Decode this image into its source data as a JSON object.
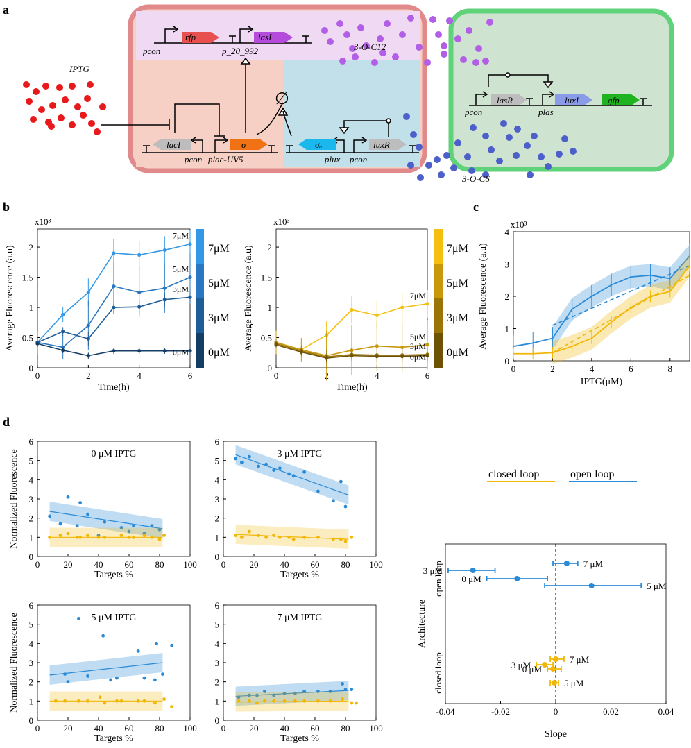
{
  "panel_letters": {
    "a": "a",
    "b": "b",
    "c": "c",
    "d": "d"
  },
  "schematic": {
    "iptg": "IPTG",
    "signal_c12": "3-O-C12",
    "signal_c6": "3-O-C6",
    "genes": {
      "rfp": "rfp",
      "lasI": "lasI",
      "lacI": "lacI",
      "sigma": "σ",
      "anti_sigma": "σₐ",
      "luxR": "luxR",
      "lasR": "lasR",
      "luxI": "luxI",
      "gfp": "gfp"
    },
    "promoters": {
      "pcon": "pcon",
      "p_20_992": "p_20_992",
      "plac": "plac-UV5",
      "plux": "plux",
      "plas": "plas"
    },
    "null_symbol": "∅"
  },
  "colors": {
    "blue": "#2a8ad6",
    "yellow": "#f2b705",
    "red": "#e8191a",
    "purple": "#b35ee6",
    "navy": "#4d5fc9"
  },
  "chart_data": [
    {
      "id": "b-left",
      "type": "line",
      "exponent": "x10³",
      "xlabel": "Time(h)",
      "ylabel": "Average Fluorescence (a.u)",
      "xlim": [
        0,
        6
      ],
      "ylim": [
        0,
        2.3
      ],
      "xticks": [
        "0",
        "2",
        "4",
        "6"
      ],
      "yticks": [
        "0",
        "0.5",
        "1",
        "1.5",
        "2"
      ],
      "x": [
        0,
        1,
        2,
        3,
        4,
        5,
        6
      ],
      "series": [
        {
          "name": "7μM",
          "values": [
            0.42,
            0.88,
            1.25,
            1.9,
            1.87,
            1.95,
            2.05
          ],
          "color": "#3399e6"
        },
        {
          "name": "5μM",
          "values": [
            0.42,
            0.34,
            0.7,
            1.35,
            1.25,
            1.32,
            1.5
          ],
          "color": "#2877c0"
        },
        {
          "name": "3μM",
          "values": [
            0.42,
            0.6,
            0.48,
            1.0,
            1.01,
            1.13,
            1.17
          ],
          "color": "#1e5d98"
        },
        {
          "name": "0μM",
          "values": [
            0.4,
            0.29,
            0.2,
            0.28,
            0.28,
            0.28,
            0.28
          ],
          "color": "#153e66"
        }
      ],
      "colorbar": [
        "7μM",
        "5μM",
        "3μM",
        "0μM"
      ]
    },
    {
      "id": "b-right",
      "type": "line",
      "exponent": "x10³",
      "xlabel": "Time(h)",
      "ylabel": "Average Fluorescence (a.u)",
      "xlim": [
        0,
        6
      ],
      "ylim": [
        0,
        2.3
      ],
      "xticks": [
        "0",
        "2",
        "4",
        "6"
      ],
      "yticks": [
        "0",
        "0.5",
        "1",
        "1.5",
        "2"
      ],
      "x": [
        0,
        1,
        2,
        3,
        4,
        5,
        6
      ],
      "series": [
        {
          "name": "7μM",
          "values": [
            0.42,
            0.3,
            0.54,
            0.96,
            0.87,
            1.0,
            1.06
          ],
          "color": "#f5bf0f"
        },
        {
          "name": "5μM",
          "values": [
            0.42,
            0.3,
            0.2,
            0.29,
            0.36,
            0.34,
            0.38
          ],
          "color": "#c8980a"
        },
        {
          "name": "3μM",
          "values": [
            0.4,
            0.28,
            0.18,
            0.22,
            0.21,
            0.21,
            0.22
          ],
          "color": "#9a7406"
        },
        {
          "name": "0μM",
          "values": [
            0.38,
            0.26,
            0.16,
            0.2,
            0.19,
            0.19,
            0.2
          ],
          "color": "#6e5203"
        }
      ],
      "colorbar": [
        "7μM",
        "5μM",
        "3μM",
        "0μM"
      ]
    },
    {
      "id": "c",
      "type": "line",
      "exponent": "x10³",
      "xlabel": "IPTG(μM)",
      "ylabel": "Average Fluorescence (a.u)",
      "xlim": [
        0,
        9
      ],
      "ylim": [
        0,
        4
      ],
      "xticks": [
        "0",
        "2",
        "4",
        "6",
        "8"
      ],
      "yticks": [
        "0",
        "1",
        "2",
        "3",
        "4"
      ],
      "series": [
        {
          "name": "open loop",
          "x": [
            0,
            1,
            2,
            3,
            4,
            5,
            6,
            7,
            8,
            9
          ],
          "values": [
            0.45,
            0.55,
            0.7,
            1.6,
            2.0,
            2.35,
            2.6,
            2.65,
            2.55,
            3.25
          ],
          "color": "#2a8ad6"
        },
        {
          "name": "closed loop",
          "x": [
            0,
            1,
            2,
            3,
            4,
            5,
            6,
            7,
            8,
            9
          ],
          "values": [
            0.22,
            0.22,
            0.25,
            0.45,
            0.7,
            1.2,
            1.65,
            2.0,
            2.15,
            2.95
          ],
          "color": "#f2b705"
        }
      ]
    },
    {
      "id": "d1",
      "type": "scatter",
      "title": "0 μM IPTG",
      "xlabel": "Targets %",
      "ylabel": "Normalized Fluorescence",
      "xlim": [
        0,
        100
      ],
      "ylim": [
        0,
        6
      ],
      "xticks": [
        "0",
        "20",
        "40",
        "60",
        "80",
        "100"
      ],
      "yticks": [
        "0",
        "1",
        "2",
        "3",
        "4",
        "5",
        "6"
      ],
      "open": {
        "x": [
          8,
          15,
          20,
          26,
          28,
          33,
          40,
          44,
          55,
          60,
          63,
          70,
          75,
          80
        ],
        "y": [
          2.1,
          1.7,
          3.1,
          1.6,
          2.8,
          2.2,
          1.1,
          1.8,
          1.5,
          1.3,
          1.6,
          1.2,
          1.6,
          1.4
        ],
        "fit": [
          2.35,
          1.45
        ]
      },
      "closed": {
        "x": [
          8,
          15,
          20,
          26,
          28,
          33,
          40,
          44,
          55,
          60,
          63,
          70,
          75,
          80,
          83
        ],
        "y": [
          1.0,
          1.1,
          1.2,
          1.0,
          1.0,
          1.1,
          1.0,
          1.0,
          1.1,
          1.0,
          1.0,
          1.1,
          1.0,
          0.9,
          1.1
        ],
        "fit": [
          1.0,
          1.0
        ]
      }
    },
    {
      "id": "d2",
      "type": "scatter",
      "title": "3 μM IPTG",
      "xlabel": "Targets %",
      "ylabel": "Normalized Fluorescence",
      "xlim": [
        0,
        100
      ],
      "ylim": [
        0,
        6
      ],
      "xticks": [
        "0",
        "20",
        "40",
        "60",
        "80",
        "100"
      ],
      "yticks": [
        "0",
        "1",
        "2",
        "3",
        "4",
        "5",
        "6"
      ],
      "open": {
        "x": [
          8,
          12,
          17,
          23,
          28,
          33,
          37,
          43,
          46,
          53,
          62,
          72,
          77,
          80
        ],
        "y": [
          5.1,
          4.9,
          5.2,
          4.7,
          4.8,
          4.5,
          4.6,
          4.3,
          4.2,
          4.4,
          3.4,
          2.9,
          3.9,
          2.6
        ],
        "fit": [
          5.3,
          3.2
        ]
      },
      "closed": {
        "x": [
          8,
          12,
          17,
          23,
          28,
          33,
          37,
          43,
          46,
          53,
          62,
          72,
          77,
          80,
          84
        ],
        "y": [
          1.1,
          1.0,
          1.3,
          1.1,
          1.0,
          1.1,
          1.0,
          1.0,
          0.9,
          1.0,
          1.0,
          0.9,
          0.9,
          0.8,
          1.0
        ],
        "fit": [
          1.15,
          0.9
        ]
      }
    },
    {
      "id": "d3",
      "type": "scatter",
      "title": "5 μM IPTG",
      "xlabel": "Targets %",
      "ylabel": "Normalized Fluorescence",
      "xlim": [
        0,
        100
      ],
      "ylim": [
        0,
        6
      ],
      "xticks": [
        "0",
        "20",
        "40",
        "60",
        "80",
        "100"
      ],
      "yticks": [
        "0",
        "1",
        "2",
        "3",
        "4",
        "5",
        "6"
      ],
      "open": {
        "x": [
          18,
          20,
          27,
          33,
          43,
          48,
          52,
          66,
          70,
          77,
          78,
          82,
          88
        ],
        "y": [
          2.4,
          2.0,
          5.3,
          2.3,
          4.4,
          2.1,
          2.2,
          3.6,
          2.2,
          2.1,
          4.0,
          2.4,
          3.9
        ],
        "fit": [
          2.35,
          3.0
        ]
      },
      "closed": {
        "x": [
          12,
          18,
          27,
          33,
          41,
          44,
          52,
          55,
          66,
          70,
          77,
          83,
          88
        ],
        "y": [
          1.0,
          1.0,
          1.0,
          1.0,
          1.2,
          0.9,
          1.0,
          1.0,
          1.0,
          1.0,
          0.9,
          1.1,
          0.7
        ],
        "fit": [
          1.0,
          1.0
        ]
      }
    },
    {
      "id": "d4",
      "type": "scatter",
      "title": "7 μM IPTG",
      "xlabel": "Targets %",
      "ylabel": "Normalized Fluorescence",
      "xlim": [
        0,
        100
      ],
      "ylim": [
        0,
        6
      ],
      "xticks": [
        "0",
        "20",
        "40",
        "60",
        "80",
        "100"
      ],
      "yticks": [
        "0",
        "1",
        "2",
        "3",
        "4",
        "5",
        "6"
      ],
      "open": {
        "x": [
          10,
          17,
          22,
          27,
          33,
          40,
          47,
          53,
          62,
          70,
          78,
          80,
          84
        ],
        "y": [
          1.2,
          1.3,
          1.3,
          1.5,
          1.3,
          1.4,
          1.4,
          1.5,
          1.5,
          1.5,
          1.9,
          1.6,
          1.6
        ],
        "fit": [
          1.25,
          1.55
        ]
      },
      "closed": {
        "x": [
          10,
          17,
          22,
          27,
          33,
          40,
          47,
          53,
          62,
          70,
          78,
          84,
          87
        ],
        "y": [
          1.0,
          1.0,
          0.9,
          1.0,
          1.0,
          1.0,
          1.0,
          1.0,
          1.0,
          1.0,
          1.1,
          0.9,
          0.9
        ],
        "fit": [
          0.95,
          1.0
        ]
      }
    },
    {
      "id": "d-slope",
      "type": "scatter",
      "xlabel": "Slope",
      "ylabel": "Architecture",
      "xlim": [
        -0.04,
        0.04
      ],
      "xticks": [
        "-0.04",
        "-0.02",
        "0",
        "0.02",
        "0.04"
      ],
      "categories": [
        "open loop",
        "closed loop"
      ],
      "legend": [
        "closed loop",
        "open loop"
      ],
      "open": [
        {
          "label": "7 μM",
          "value": 0.004,
          "lo": -0.001,
          "hi": 0.008
        },
        {
          "label": "3 μM",
          "value": -0.03,
          "lo": -0.039,
          "hi": -0.022
        },
        {
          "label": "0 μM",
          "value": -0.014,
          "lo": -0.025,
          "hi": -0.003
        },
        {
          "label": "5 μM",
          "value": 0.013,
          "lo": -0.004,
          "hi": 0.031
        }
      ],
      "closed": [
        {
          "label": "7 μM",
          "value": 0.0,
          "lo": -0.002,
          "hi": 0.003
        },
        {
          "label": "3 μM",
          "value": -0.004,
          "lo": -0.007,
          "hi": -0.001
        },
        {
          "label": "0 μM",
          "value": -0.001,
          "lo": -0.003,
          "hi": 0.002
        },
        {
          "label": "5 μM",
          "value": -0.0005,
          "lo": -0.002,
          "hi": 0.001
        }
      ]
    }
  ]
}
